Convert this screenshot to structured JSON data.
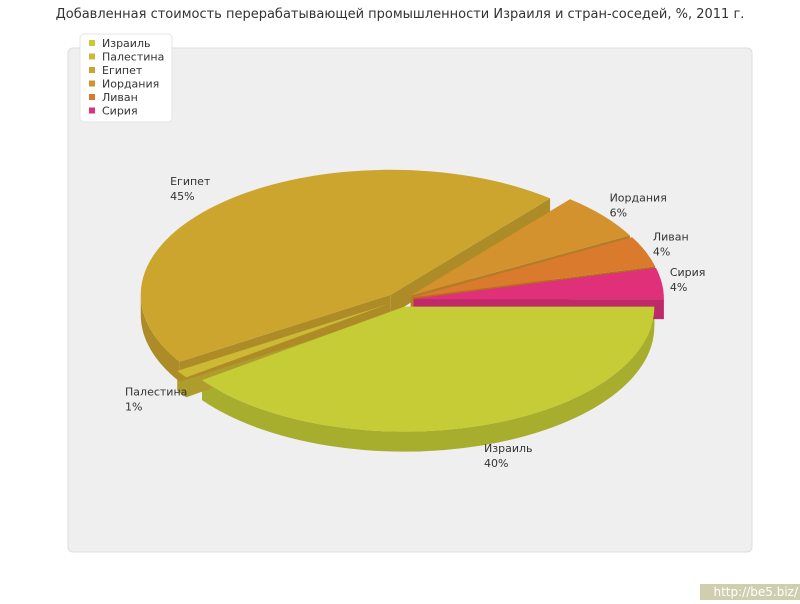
{
  "chart_data": {
    "type": "pie",
    "title": "Добавленная стоимость перерабатывающей промышленности Израиля и стран-соседей, %, 2011 г.",
    "categories": [
      "Израиль",
      "Палестина",
      "Египет",
      "Иордания",
      "Ливан",
      "Сирия"
    ],
    "values": [
      40,
      1,
      45,
      6,
      4,
      4
    ],
    "value_labels": [
      "40%",
      "1%",
      "45%",
      "6%",
      "4%",
      "4%"
    ],
    "colors": [
      "#c5cc35",
      "#cdb934",
      "#cca52e",
      "#d4922e",
      "#da7a2c",
      "#e0307a"
    ],
    "legend": "top-left"
  },
  "watermark": "http://be5.biz/"
}
